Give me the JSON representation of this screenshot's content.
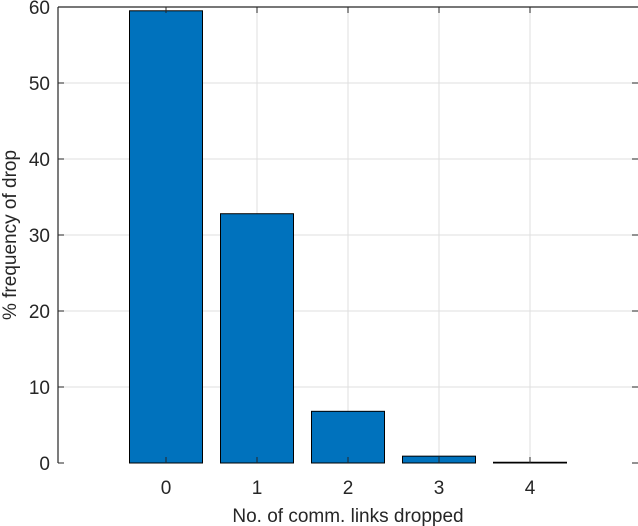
{
  "chart_data": {
    "type": "bar",
    "title": "",
    "xlabel": "No. of comm. links dropped",
    "ylabel": "% frequency of drop",
    "categories": [
      "0",
      "1",
      "2",
      "3",
      "4"
    ],
    "values": [
      59.5,
      32.8,
      6.8,
      0.9,
      0.1
    ],
    "ylim": [
      0,
      60
    ],
    "xlim": [
      -1,
      5
    ],
    "yticks": [
      0,
      10,
      20,
      30,
      40,
      50,
      60
    ],
    "xticks": [
      0,
      1,
      2,
      3,
      4
    ],
    "grid": true,
    "legend": null,
    "bar_color": "#0072BD",
    "bar_edge_color": "#000000"
  }
}
